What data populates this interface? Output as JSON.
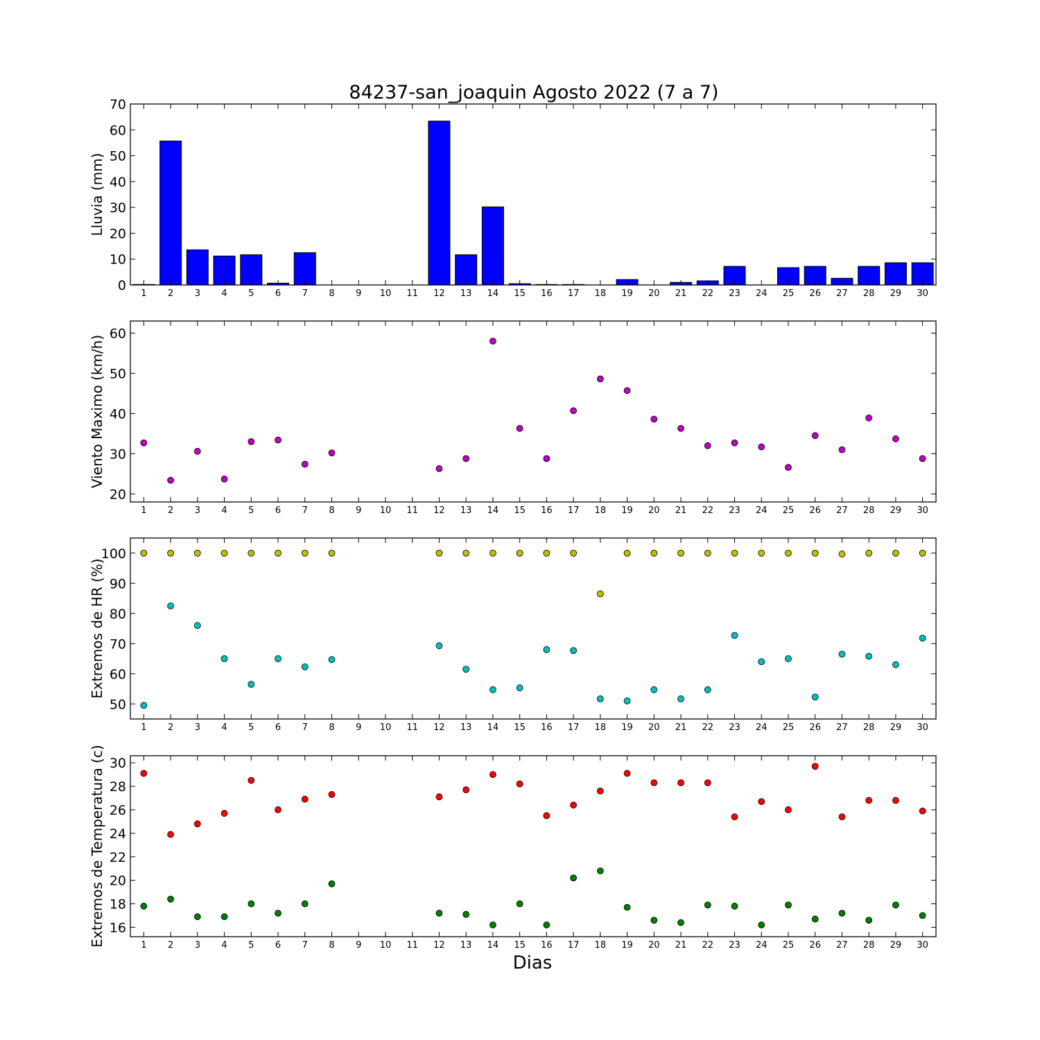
{
  "chart_data": {
    "title": "84237-san_joaquin Agosto 2022  (7 a 7)",
    "xlabel": "Dias",
    "x": [
      1,
      2,
      3,
      4,
      5,
      6,
      7,
      8,
      9,
      10,
      11,
      12,
      13,
      14,
      15,
      16,
      17,
      18,
      19,
      20,
      21,
      22,
      23,
      24,
      25,
      26,
      27,
      28,
      29,
      30
    ],
    "panels": [
      {
        "type": "bar",
        "ylabel": "Lluvia (mm)",
        "ylim": [
          0,
          70
        ],
        "yticks": [
          0,
          10,
          20,
          30,
          40,
          50,
          60,
          70
        ],
        "series": [
          {
            "color": "#0000ff",
            "values": [
              0.2,
              55.7,
              13.6,
              11.2,
              11.7,
              0.7,
              12.5,
              0,
              0,
              0,
              0,
              63.4,
              11.7,
              30.2,
              0.5,
              0.2,
              0.2,
              0,
              2.1,
              0,
              1.0,
              1.6,
              7.2,
              0,
              6.7,
              7.2,
              2.6,
              7.2,
              8.6,
              8.6
            ]
          }
        ]
      },
      {
        "type": "line",
        "ylabel": "Viento Maximo (km/h)",
        "ylim": [
          18,
          63
        ],
        "yticks": [
          20,
          30,
          40,
          50,
          60
        ],
        "series": [
          {
            "color": "#bf00bf",
            "values": [
              32.7,
              23.4,
              30.6,
              23.7,
              33.0,
              33.4,
              27.4,
              30.2,
              null,
              null,
              null,
              26.3,
              28.8,
              58.0,
              36.3,
              28.8,
              40.7,
              48.6,
              45.7,
              38.6,
              36.3,
              32.0,
              32.7,
              31.7,
              26.6,
              34.5,
              31.0,
              38.9,
              33.7,
              28.8
            ]
          }
        ]
      },
      {
        "type": "line",
        "ylabel": "Extremos de HR (%)",
        "ylim": [
          45,
          105
        ],
        "yticks": [
          50,
          60,
          70,
          80,
          90,
          100
        ],
        "series": [
          {
            "color": "#bfbf00",
            "values": [
              100,
              100,
              100,
              100,
              100,
              100,
              100,
              100,
              null,
              null,
              null,
              100,
              100,
              100,
              100,
              100,
              100,
              86.5,
              100,
              100,
              100,
              100,
              100,
              100,
              100,
              100,
              99.7,
              100,
              100,
              100
            ]
          },
          {
            "color": "#00bfbf",
            "values": [
              49.5,
              82.5,
              76.0,
              65.0,
              56.5,
              65.0,
              62.3,
              64.7,
              null,
              null,
              null,
              69.3,
              61.5,
              54.7,
              55.3,
              68.0,
              67.7,
              51.7,
              51.0,
              54.7,
              51.7,
              54.7,
              72.7,
              64.0,
              65.0,
              52.3,
              66.5,
              65.8,
              63.0,
              71.8
            ]
          }
        ]
      },
      {
        "type": "line",
        "ylabel": "Extremos de Temperatura (c)",
        "ylim": [
          15.2,
          30.6
        ],
        "yticks": [
          16,
          18,
          20,
          22,
          24,
          26,
          28,
          30
        ],
        "series": [
          {
            "color": "#ff0000",
            "values": [
              29.1,
              23.9,
              24.8,
              25.7,
              28.5,
              26.0,
              26.9,
              27.3,
              null,
              null,
              null,
              27.1,
              27.7,
              29.0,
              28.2,
              25.5,
              26.4,
              27.6,
              29.1,
              28.3,
              28.3,
              28.3,
              25.4,
              26.7,
              26.0,
              29.7,
              25.4,
              26.8,
              26.8,
              25.9
            ]
          },
          {
            "color": "#007f00",
            "values": [
              17.8,
              18.4,
              16.9,
              16.9,
              18.0,
              17.2,
              18.0,
              19.7,
              null,
              null,
              null,
              17.2,
              17.1,
              16.2,
              18.0,
              16.2,
              20.2,
              20.8,
              17.7,
              16.6,
              16.4,
              17.9,
              17.8,
              16.2,
              17.9,
              16.7,
              17.2,
              16.6,
              17.9,
              17.0
            ]
          }
        ]
      }
    ]
  }
}
